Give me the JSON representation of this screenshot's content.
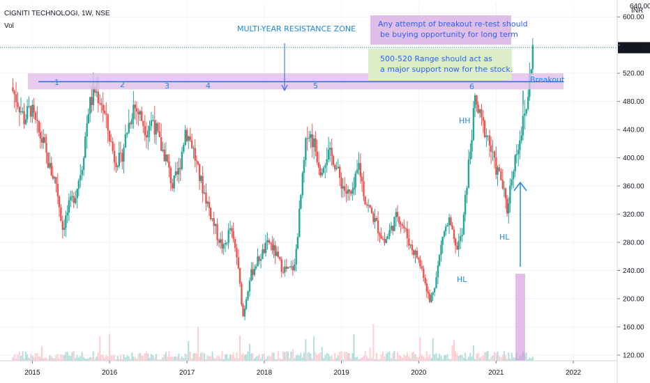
{
  "header": {
    "symbol_line": "CIGNITI TECHNOLOGI, 1W, NSE",
    "volume_label": "Vol"
  },
  "chart_data": {
    "type": "candlestick",
    "x_range": [
      "2014-08",
      "2022-03"
    ],
    "ylim": [
      112,
      620
    ],
    "x_ticks": [
      "2015",
      "2016",
      "2017",
      "2018",
      "2019",
      "2020",
      "2021",
      "2022"
    ],
    "y_ticks": [
      120,
      160,
      200,
      240,
      280,
      320,
      360,
      400,
      440,
      480,
      520,
      560,
      600
    ],
    "y_top_partial_label": "640.00",
    "currency_label": "INR",
    "last_price_label": "556.25",
    "last_price": 556.25,
    "resistance_zone": {
      "low": 497,
      "high": 520,
      "line": 508
    },
    "price_path": [
      {
        "date": "2014-10",
        "close": 500
      },
      {
        "date": "2014-11",
        "close": 480
      },
      {
        "date": "2014-12",
        "close": 455
      },
      {
        "date": "2015-01",
        "close": 470
      },
      {
        "date": "2015-02",
        "close": 440
      },
      {
        "date": "2015-03",
        "close": 420
      },
      {
        "date": "2015-04",
        "close": 385
      },
      {
        "date": "2015-05",
        "close": 365
      },
      {
        "date": "2015-06",
        "close": 300
      },
      {
        "date": "2015-07",
        "close": 330
      },
      {
        "date": "2015-08",
        "close": 350
      },
      {
        "date": "2015-09",
        "close": 390
      },
      {
        "date": "2015-10",
        "close": 470
      },
      {
        "date": "2015-11",
        "close": 495
      },
      {
        "date": "2015-12",
        "close": 480
      },
      {
        "date": "2016-01",
        "close": 440
      },
      {
        "date": "2016-02",
        "close": 400
      },
      {
        "date": "2016-03",
        "close": 395
      },
      {
        "date": "2016-04",
        "close": 440
      },
      {
        "date": "2016-05",
        "close": 475
      },
      {
        "date": "2016-06",
        "close": 460
      },
      {
        "date": "2016-07",
        "close": 440
      },
      {
        "date": "2016-08",
        "close": 455
      },
      {
        "date": "2016-09",
        "close": 420
      },
      {
        "date": "2016-10",
        "close": 400
      },
      {
        "date": "2016-11",
        "close": 360
      },
      {
        "date": "2016-12",
        "close": 380
      },
      {
        "date": "2017-01",
        "close": 440
      },
      {
        "date": "2017-02",
        "close": 420
      },
      {
        "date": "2017-03",
        "close": 380
      },
      {
        "date": "2017-04",
        "close": 350
      },
      {
        "date": "2017-05",
        "close": 320
      },
      {
        "date": "2017-06",
        "close": 290
      },
      {
        "date": "2017-07",
        "close": 270
      },
      {
        "date": "2017-08",
        "close": 300
      },
      {
        "date": "2017-09",
        "close": 260
      },
      {
        "date": "2017-10",
        "close": 175
      },
      {
        "date": "2017-11",
        "close": 230
      },
      {
        "date": "2017-12",
        "close": 250
      },
      {
        "date": "2018-01",
        "close": 265
      },
      {
        "date": "2018-02",
        "close": 280
      },
      {
        "date": "2018-03",
        "close": 265
      },
      {
        "date": "2018-04",
        "close": 245
      },
      {
        "date": "2018-05",
        "close": 240
      },
      {
        "date": "2018-06",
        "close": 245
      },
      {
        "date": "2018-07",
        "close": 345
      },
      {
        "date": "2018-08",
        "close": 440
      },
      {
        "date": "2018-09",
        "close": 420
      },
      {
        "date": "2018-10",
        "close": 385
      },
      {
        "date": "2018-11",
        "close": 405
      },
      {
        "date": "2018-12",
        "close": 400
      },
      {
        "date": "2019-01",
        "close": 370
      },
      {
        "date": "2019-02",
        "close": 350
      },
      {
        "date": "2019-03",
        "close": 345
      },
      {
        "date": "2019-04",
        "close": 390
      },
      {
        "date": "2019-05",
        "close": 340
      },
      {
        "date": "2019-06",
        "close": 320
      },
      {
        "date": "2019-07",
        "close": 300
      },
      {
        "date": "2019-08",
        "close": 280
      },
      {
        "date": "2019-09",
        "close": 300
      },
      {
        "date": "2019-10",
        "close": 320
      },
      {
        "date": "2019-11",
        "close": 300
      },
      {
        "date": "2019-12",
        "close": 275
      },
      {
        "date": "2020-01",
        "close": 260
      },
      {
        "date": "2020-02",
        "close": 235
      },
      {
        "date": "2020-03",
        "close": 195
      },
      {
        "date": "2020-04",
        "close": 230
      },
      {
        "date": "2020-05",
        "close": 290
      },
      {
        "date": "2020-06",
        "close": 310
      },
      {
        "date": "2020-07",
        "close": 270
      },
      {
        "date": "2020-08",
        "close": 290
      },
      {
        "date": "2020-09",
        "close": 390
      },
      {
        "date": "2020-10",
        "close": 480
      },
      {
        "date": "2020-11",
        "close": 450
      },
      {
        "date": "2020-12",
        "close": 430
      },
      {
        "date": "2021-01",
        "close": 390
      },
      {
        "date": "2021-02",
        "close": 370
      },
      {
        "date": "2021-03",
        "close": 325
      },
      {
        "date": "2021-04",
        "close": 390
      },
      {
        "date": "2021-05",
        "close": 430
      },
      {
        "date": "2021-06",
        "close": 470
      },
      {
        "date": "2021-07",
        "close": 556
      }
    ],
    "annotations": {
      "resistance_title": "MULTI-YEAR RESISTANCE ZONE",
      "breakout_note_line1": "Any attempt of breakout re-test should",
      "breakout_note_line2": "be buying opportunity for long term",
      "support_note_line1": "500-520 Range should act as",
      "support_note_line2": "a major support now for the stock.",
      "breakout_label": "Breakout",
      "touch_numbers": [
        "1",
        "2",
        "3",
        "4",
        "5",
        "6"
      ],
      "hh_label": "HH",
      "hl_label_1": "HL",
      "hl_label_2": "HL"
    },
    "colors": {
      "up": "#26a69a",
      "down": "#ef5350",
      "zone_fill": "#e1bee7",
      "line": "#2962ff",
      "text_blue": "#1e88e5",
      "last_price_bg": "#131722",
      "box_purple": "#e1bee7",
      "box_green": "#dcedc8"
    }
  }
}
